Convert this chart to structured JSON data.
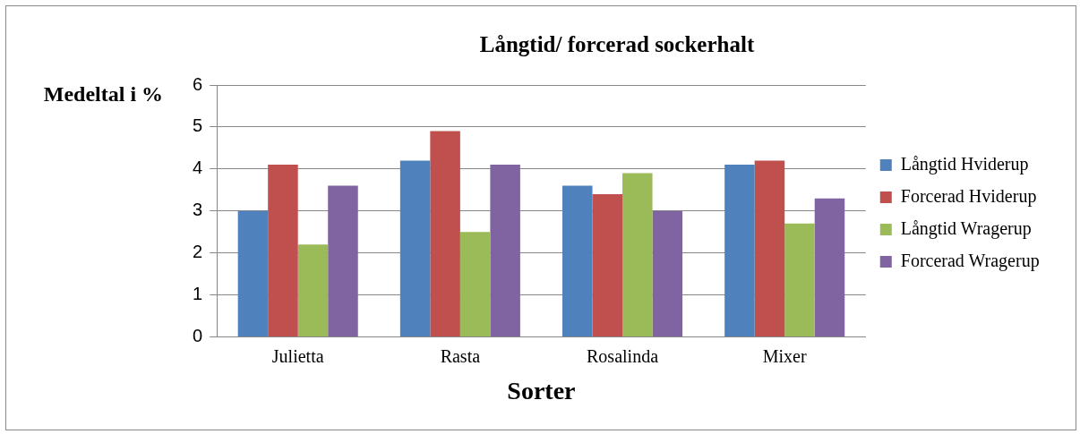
{
  "chart_data": {
    "type": "bar",
    "title": "Långtid/ forcerad sockerhalt",
    "xlabel": "Sorter",
    "ylabel": "Medeltal i %",
    "categories": [
      "Julietta",
      "Rasta",
      "Rosalinda",
      "Mixer"
    ],
    "series": [
      {
        "name": "Långtid Hviderup",
        "color": "#4f81bd",
        "values": [
          3.0,
          4.2,
          3.6,
          4.1
        ]
      },
      {
        "name": "Forcerad Hviderup",
        "color": "#c0504d",
        "values": [
          4.1,
          4.9,
          3.4,
          4.2
        ]
      },
      {
        "name": "Långtid Wragerup",
        "color": "#9bbb59",
        "values": [
          2.2,
          2.5,
          3.9,
          2.7
        ]
      },
      {
        "name": "Forcerad Wragerup",
        "color": "#8064a2",
        "values": [
          3.6,
          4.1,
          3.0,
          3.3
        ]
      }
    ],
    "ylim": [
      0,
      6
    ],
    "yticks": [
      0,
      1,
      2,
      3,
      4,
      5,
      6
    ],
    "grid": "y",
    "legend": "right"
  }
}
